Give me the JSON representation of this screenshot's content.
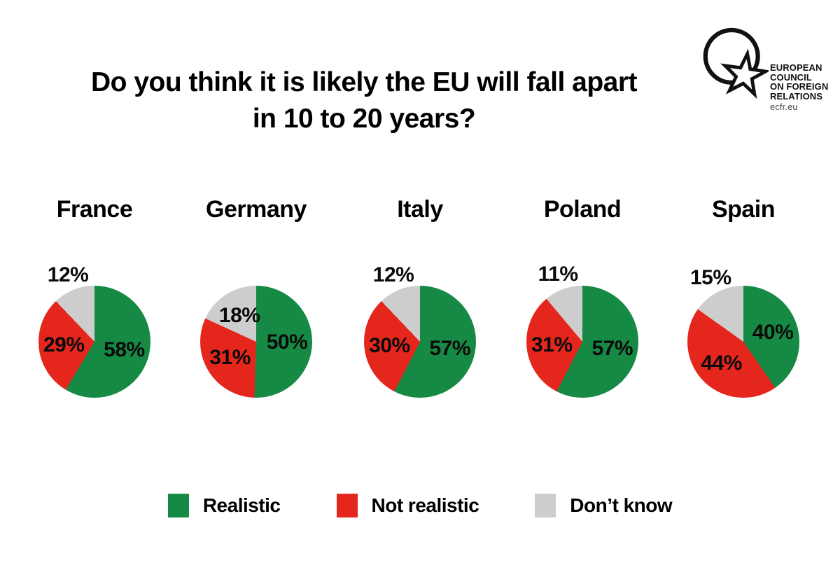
{
  "header": {
    "title_line1": "Do you think it is likely the EU will fall apart",
    "title_line2": "in 10 to 20 years?"
  },
  "logo": {
    "org_lines": [
      "EUROPEAN",
      "COUNCIL",
      "ON FOREIGN",
      "RELATIONS"
    ],
    "site": "ecfr.eu"
  },
  "chart_data": {
    "type": "pie",
    "title": "Do you think it is likely the EU will fall apart in 10 to 20 years?",
    "unit": "%",
    "legend_position": "bottom",
    "categories": [
      "Realistic",
      "Not realistic",
      "Don’t know"
    ],
    "colors": [
      "#168a44",
      "#e4261d",
      "#cdcdcd"
    ],
    "pies": [
      {
        "country": "France",
        "values": [
          58,
          29,
          12
        ],
        "dont_know_label": "outside"
      },
      {
        "country": "Germany",
        "values": [
          50,
          31,
          18
        ],
        "dont_know_label": "inside"
      },
      {
        "country": "Italy",
        "values": [
          57,
          30,
          12
        ],
        "dont_know_label": "outside"
      },
      {
        "country": "Poland",
        "values": [
          57,
          31,
          11
        ],
        "dont_know_label": "outside"
      },
      {
        "country": "Spain",
        "values": [
          40,
          44,
          15
        ],
        "dont_know_label": "outside"
      }
    ]
  }
}
